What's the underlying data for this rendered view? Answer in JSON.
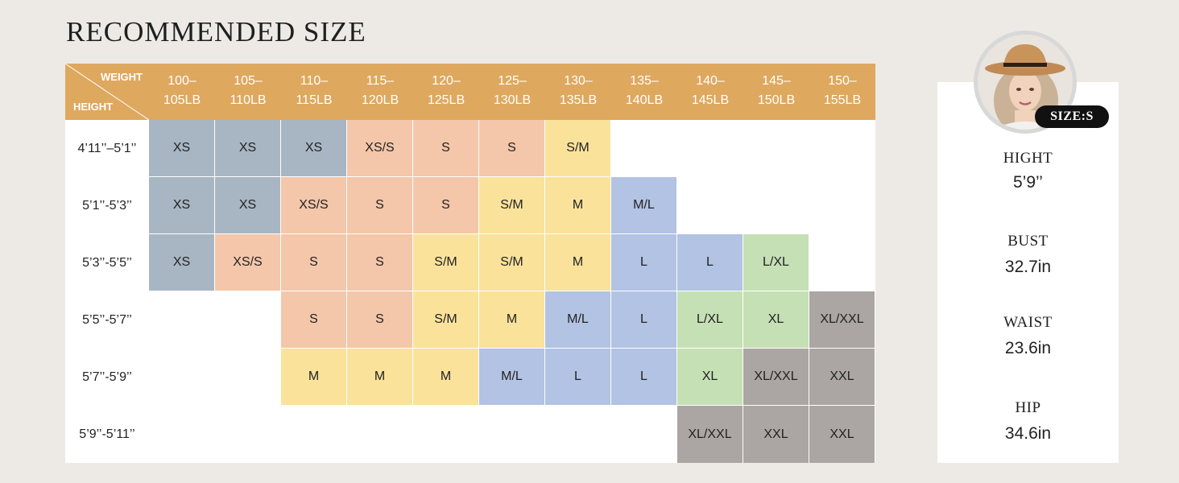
{
  "title": "RECOMMENDED SIZE",
  "corner": {
    "weight": "WEIGHT",
    "height": "HEIGHT"
  },
  "weights": [
    [
      "100–",
      "105LB"
    ],
    [
      "105–",
      "110LB"
    ],
    [
      "110–",
      "115LB"
    ],
    [
      "115–",
      "120LB"
    ],
    [
      "120–",
      "125LB"
    ],
    [
      "125–",
      "130LB"
    ],
    [
      "130–",
      "135LB"
    ],
    [
      "135–",
      "140LB"
    ],
    [
      "140–",
      "145LB"
    ],
    [
      "145–",
      "150LB"
    ],
    [
      "150–",
      "155LB"
    ]
  ],
  "heights": [
    "4’11’’–5’1’’",
    "5’1’’-5’3’’",
    "5’3’’-5’5’’",
    "5’5’’-5’7’’",
    "5’7’’-5’9’’",
    "5’9’’-5’11’’"
  ],
  "rows": [
    [
      "XS",
      "XS",
      "XS",
      "XS/S",
      "S",
      "S",
      "S/M",
      "",
      "",
      "",
      ""
    ],
    [
      "XS",
      "XS",
      "XS/S",
      "S",
      "S",
      "S/M",
      "M",
      "M/L",
      "",
      "",
      ""
    ],
    [
      "XS",
      "XS/S",
      "S",
      "S",
      "S/M",
      "S/M",
      "M",
      "L",
      "L",
      "L/XL",
      ""
    ],
    [
      "",
      "",
      "S",
      "S",
      "S/M",
      "M",
      "M/L",
      "L",
      "L/XL",
      "XL",
      "XL/XXL"
    ],
    [
      "",
      "",
      "M",
      "M",
      "M",
      "M/L",
      "L",
      "L",
      "XL",
      "XL/XXL",
      "XXL"
    ],
    [
      "",
      "",
      "",
      "",
      "",
      "",
      "",
      "",
      "XL/XXL",
      "XXL",
      "XXL"
    ]
  ],
  "size_colors": {
    "XS": "#a8b6c3",
    "XS/S": "#f4c6aa",
    "S": "#f4c6aa",
    "S/M": "#fae29b",
    "M": "#fae29b",
    "M/L": "#b2c3e3",
    "L": "#b2c3e3",
    "L/XL": "#c5e0b5",
    "XL": "#c5e0b5",
    "XL/XXL": "#aba6a3",
    "XXL": "#aba6a3"
  },
  "header_color": "#dea85f",
  "model": {
    "size_badge": "SIZE:S",
    "stats": [
      {
        "label": "HIGHT",
        "value": "5’9’’"
      },
      {
        "label": "BUST",
        "value": "32.7in"
      },
      {
        "label": "WAIST",
        "value": "23.6in"
      },
      {
        "label": "HIP",
        "value": "34.6in"
      }
    ]
  }
}
